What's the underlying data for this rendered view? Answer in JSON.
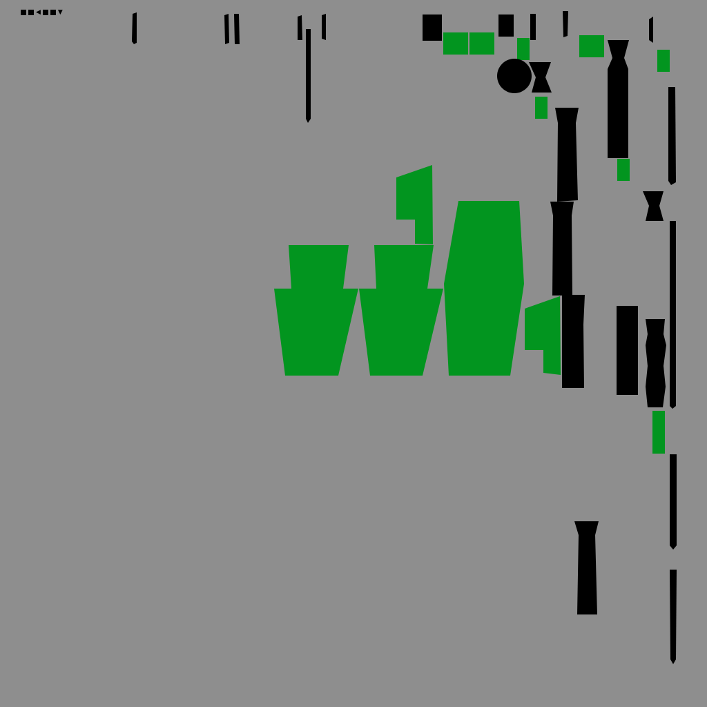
{
  "colors": {
    "background": "#8e8e8e",
    "figure": "#000000",
    "accent": "#02951f"
  },
  "hud": {
    "glyph_1": "◀",
    "glyph_2": "▼"
  },
  "scene": {
    "description_icons": [
      "square-block-icon",
      "arrow-left-icon",
      "arrow-down-icon"
    ]
  }
}
